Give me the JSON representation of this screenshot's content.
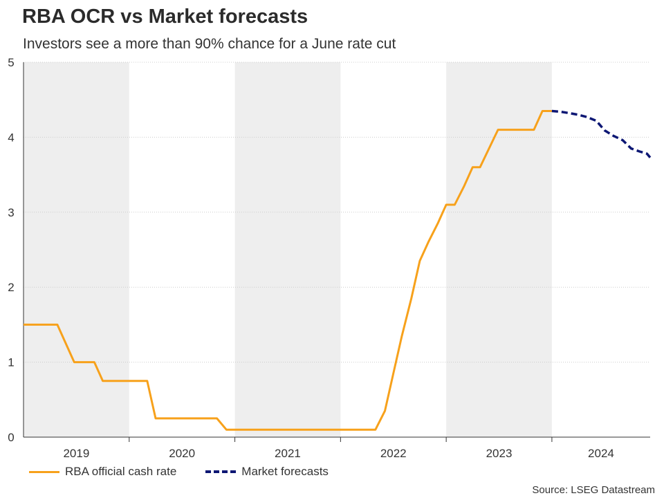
{
  "title": "RBA OCR vs Market forecasts",
  "subtitle": "Investors see a more than 90% chance for a June rate cut",
  "source": "Source: LSEG Datastream",
  "colors": {
    "actual": "#f7a11b",
    "forecast": "#0d1774",
    "shade": "#eeeeee",
    "grid": "#cccccc",
    "axis": "#333333"
  },
  "chart_data": {
    "type": "line",
    "title": "RBA OCR vs Market forecasts",
    "xlabel": "",
    "ylabel": "",
    "xlim": [
      2019.0,
      2024.93
    ],
    "ylim": [
      0,
      5
    ],
    "yticks": [
      "0",
      "1",
      "2",
      "3",
      "4",
      "5"
    ],
    "year_labels": [
      "2019",
      "2020",
      "2021",
      "2022",
      "2023",
      "2024"
    ],
    "shaded_years": [
      "2019",
      "2021",
      "2023"
    ],
    "legend_position": "bottom-left",
    "series": [
      {
        "name": "RBA official cash rate",
        "style": "solid",
        "points": [
          [
            2019.0,
            1.5
          ],
          [
            2019.32,
            1.5
          ],
          [
            2019.48,
            1.0
          ],
          [
            2019.67,
            1.0
          ],
          [
            2019.75,
            0.75
          ],
          [
            2020.17,
            0.75
          ],
          [
            2020.25,
            0.25
          ],
          [
            2020.83,
            0.25
          ],
          [
            2020.92,
            0.1
          ],
          [
            2022.33,
            0.1
          ],
          [
            2022.42,
            0.35
          ],
          [
            2022.5,
            0.85
          ],
          [
            2022.58,
            1.35
          ],
          [
            2022.67,
            1.85
          ],
          [
            2022.75,
            2.35
          ],
          [
            2022.83,
            2.6
          ],
          [
            2022.92,
            2.85
          ],
          [
            2023.0,
            3.1
          ],
          [
            2023.08,
            3.1
          ],
          [
            2023.17,
            3.35
          ],
          [
            2023.25,
            3.6
          ],
          [
            2023.32,
            3.6
          ],
          [
            2023.49,
            4.1
          ],
          [
            2023.83,
            4.1
          ],
          [
            2023.91,
            4.35
          ],
          [
            2024.0,
            4.35
          ]
        ]
      },
      {
        "name": "Market forecasts",
        "style": "dashed",
        "points": [
          [
            2024.0,
            4.35
          ],
          [
            2024.08,
            4.34
          ],
          [
            2024.17,
            4.32
          ],
          [
            2024.25,
            4.3
          ],
          [
            2024.33,
            4.27
          ],
          [
            2024.42,
            4.22
          ],
          [
            2024.5,
            4.09
          ],
          [
            2024.58,
            4.02
          ],
          [
            2024.67,
            3.96
          ],
          [
            2024.75,
            3.85
          ],
          [
            2024.83,
            3.81
          ],
          [
            2024.9,
            3.78
          ],
          [
            2024.93,
            3.73
          ]
        ]
      }
    ]
  }
}
